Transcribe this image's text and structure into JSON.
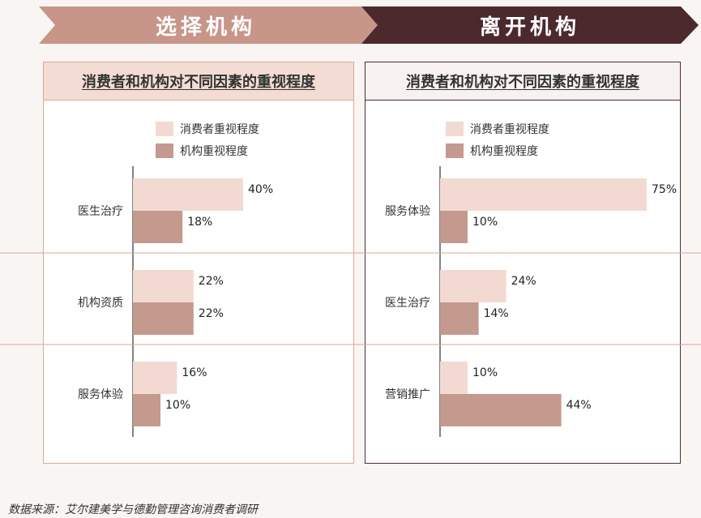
{
  "banners": {
    "left": "选择机构",
    "right": "离开机构"
  },
  "colors": {
    "consumer": "#f2dad3",
    "institution": "#c49a8e",
    "banner_left": "#c89589",
    "banner_right": "#4c292d",
    "divider": "#d9a99c"
  },
  "legend": {
    "consumer": "消费者重视程度",
    "institution": "机构重视程度"
  },
  "chart_data": [
    {
      "type": "bar",
      "orientation": "horizontal",
      "title": "消费者和机构对不同因素的重视程度",
      "categories": [
        "医生治疗",
        "机构资质",
        "服务体验"
      ],
      "series": [
        {
          "name": "消费者重视程度",
          "values": [
            40,
            22,
            16
          ]
        },
        {
          "name": "机构重视程度",
          "values": [
            18,
            22,
            10
          ]
        }
      ],
      "value_labels": [
        [
          "40%",
          "22%",
          "16%"
        ],
        [
          "18%",
          "22%",
          "10%"
        ]
      ],
      "xlim": [
        0,
        75
      ],
      "legend_position": "top"
    },
    {
      "type": "bar",
      "orientation": "horizontal",
      "title": "消费者和机构对不同因素的重视程度",
      "categories": [
        "服务体验",
        "医生治疗",
        "营销推广"
      ],
      "series": [
        {
          "name": "消费者重视程度",
          "values": [
            75,
            24,
            10
          ]
        },
        {
          "name": "机构重视程度",
          "values": [
            10,
            14,
            44
          ]
        }
      ],
      "value_labels": [
        [
          "75%",
          "24%",
          "10%"
        ],
        [
          "10%",
          "14%",
          "44%"
        ]
      ],
      "xlim": [
        0,
        75
      ],
      "legend_position": "top"
    }
  ],
  "source": "数据来源：艾尔建美学与德勤管理咨询消费者调研"
}
